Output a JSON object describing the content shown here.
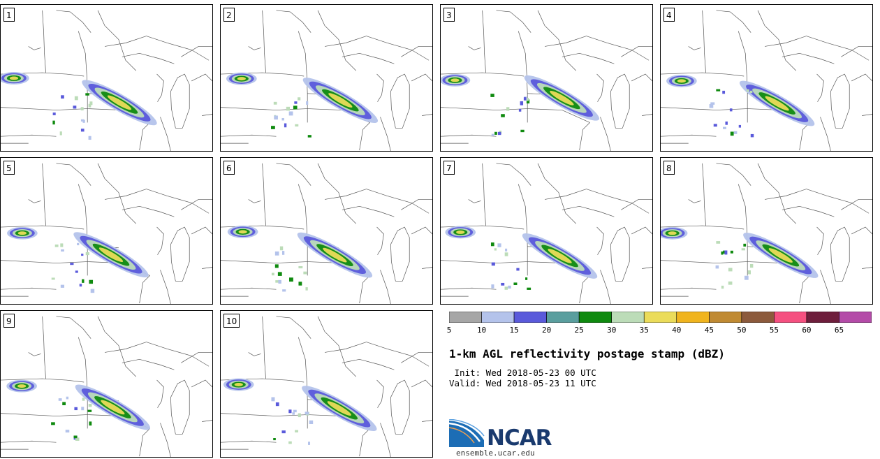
{
  "panels": [
    {
      "label": "1"
    },
    {
      "label": "2"
    },
    {
      "label": "3"
    },
    {
      "label": "4"
    },
    {
      "label": "5"
    },
    {
      "label": "6"
    },
    {
      "label": "7"
    },
    {
      "label": "8"
    },
    {
      "label": "9"
    },
    {
      "label": "10"
    }
  ],
  "legend": {
    "ticks": [
      "5",
      "10",
      "15",
      "20",
      "25",
      "30",
      "35",
      "40",
      "45",
      "50",
      "55",
      "60",
      "65"
    ],
    "colors": [
      "#a6a6a6",
      "#b4c3eb",
      "#5a5adb",
      "#5a9e9e",
      "#0f8a0f",
      "#bcdcb8",
      "#ebdc5a",
      "#f0b41e",
      "#c08a32",
      "#8c5a3c",
      "#f55080",
      "#6e1e3c",
      "#b44ba8"
    ]
  },
  "title": "1-km AGL reflectivity postage stamp (dBZ)",
  "init_line": " Init: Wed 2018-05-23 00 UTC",
  "valid_line": "Valid: Wed 2018-05-23 11 UTC",
  "logo": {
    "wordmark": "NCAR"
  },
  "site": "ensemble.ucar.edu"
}
